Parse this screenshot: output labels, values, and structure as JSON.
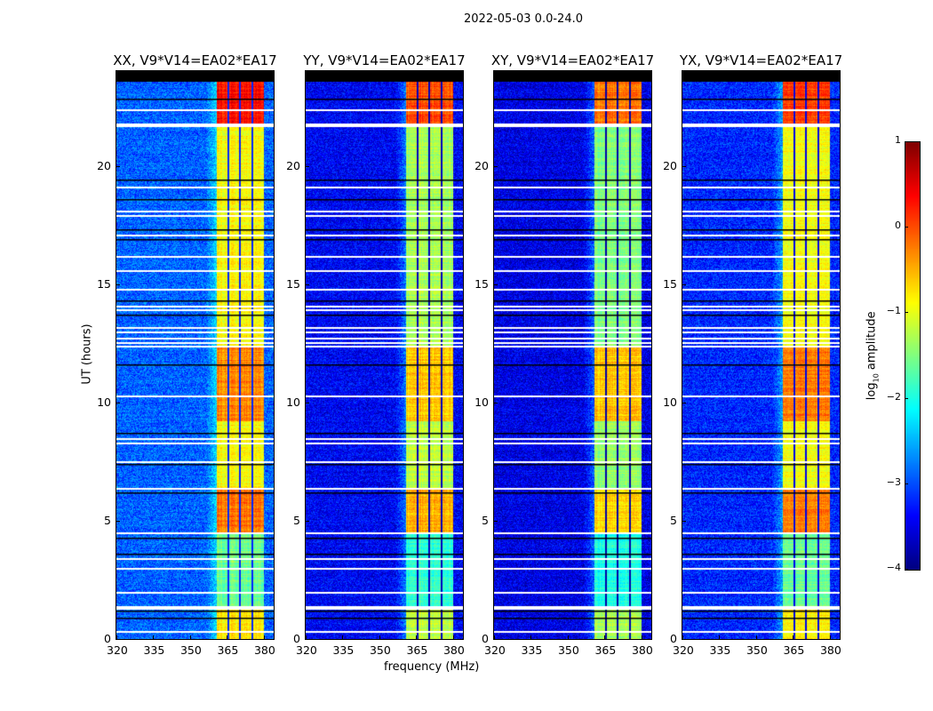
{
  "chart_data": {
    "type": "heatmap",
    "title": "2022-05-03 0.0-24.0",
    "xlabel": "frequency (MHz)",
    "ylabel": "UT (hours)",
    "xlim": [
      320,
      384
    ],
    "ylim": [
      0,
      24
    ],
    "xticks": [
      320,
      335,
      350,
      365,
      380
    ],
    "yticks": [
      0,
      5,
      10,
      15,
      20
    ],
    "colorbar": {
      "label": "log10 amplitude",
      "label_main": "log",
      "label_sub": "10",
      "label_rest": " amplitude",
      "range": [
        -4,
        1
      ],
      "ticks": [
        "1",
        "0",
        "−1",
        "−2",
        "−3",
        "−4"
      ],
      "tick_values": [
        1,
        0,
        -1,
        -2,
        -3,
        -4
      ],
      "colormap": "jet"
    },
    "rfi_band_mhz": [
      360.5,
      380
    ],
    "band_dividers_mhz": [
      365.5,
      370.2,
      375
    ],
    "no_data_ut": [
      [
        23.55,
        24
      ]
    ],
    "flagged_rows_ut": [
      22.4,
      21.8,
      21.7,
      19.1,
      18.1,
      17.9,
      17.1,
      16.2,
      15.6,
      14.8,
      14.1,
      13.95,
      13.2,
      13.0,
      12.75,
      12.55,
      12.4,
      10.3,
      8.5,
      8.3,
      7.5,
      6.4,
      4.5,
      3.4,
      3.0,
      2.0,
      1.4,
      1.3,
      0.35
    ],
    "dark_rows_ut": [
      22.85,
      19.4,
      18.6,
      17.3,
      16.9,
      14.3,
      13.7,
      11.6,
      8.7,
      7.4,
      6.2,
      4.3,
      3.6,
      1.2,
      0.9
    ],
    "panels": [
      {
        "title": "XX, V9*V14=EA02*EA17",
        "background_log10": -2.9,
        "segments": [
          {
            "ut": [
              21.8,
              23.55
            ],
            "band_log10": 0.3
          },
          {
            "ut": [
              12.4,
              21.8
            ],
            "band_log10": -0.9
          },
          {
            "ut": [
              9.2,
              12.4
            ],
            "band_log10": -0.3
          },
          {
            "ut": [
              6.3,
              9.2
            ],
            "band_log10": -0.9
          },
          {
            "ut": [
              4.5,
              6.3
            ],
            "band_log10": -0.2
          },
          {
            "ut": [
              1.3,
              4.5
            ],
            "band_log10": -1.6
          },
          {
            "ut": [
              0,
              1.3
            ],
            "band_log10": -0.8
          }
        ]
      },
      {
        "title": "YY, V9*V14=EA02*EA17",
        "background_log10": -3.4,
        "segments": [
          {
            "ut": [
              21.8,
              23.55
            ],
            "band_log10": 0.0
          },
          {
            "ut": [
              12.4,
              21.8
            ],
            "band_log10": -1.3
          },
          {
            "ut": [
              9.2,
              12.4
            ],
            "band_log10": -0.6
          },
          {
            "ut": [
              6.3,
              9.2
            ],
            "band_log10": -1.2
          },
          {
            "ut": [
              4.5,
              6.3
            ],
            "band_log10": -0.5
          },
          {
            "ut": [
              1.3,
              4.5
            ],
            "band_log10": -1.9
          },
          {
            "ut": [
              0,
              1.3
            ],
            "band_log10": -1.2
          }
        ]
      },
      {
        "title": "XY, V9*V14=EA02*EA17",
        "background_log10": -3.5,
        "segments": [
          {
            "ut": [
              21.8,
              23.55
            ],
            "band_log10": -0.2
          },
          {
            "ut": [
              12.4,
              21.8
            ],
            "band_log10": -1.5
          },
          {
            "ut": [
              9.2,
              12.4
            ],
            "band_log10": -0.6
          },
          {
            "ut": [
              6.3,
              9.2
            ],
            "band_log10": -1.4
          },
          {
            "ut": [
              4.5,
              6.3
            ],
            "band_log10": -0.7
          },
          {
            "ut": [
              1.3,
              4.5
            ],
            "band_log10": -2.0
          },
          {
            "ut": [
              0,
              1.3
            ],
            "band_log10": -1.3
          }
        ]
      },
      {
        "title": "YX, V9*V14=EA02*EA17",
        "background_log10": -3.2,
        "segments": [
          {
            "ut": [
              21.8,
              23.55
            ],
            "band_log10": 0.1
          },
          {
            "ut": [
              12.4,
              21.8
            ],
            "band_log10": -0.9
          },
          {
            "ut": [
              9.2,
              12.4
            ],
            "band_log10": -0.2
          },
          {
            "ut": [
              6.3,
              9.2
            ],
            "band_log10": -0.9
          },
          {
            "ut": [
              4.5,
              6.3
            ],
            "band_log10": -0.2
          },
          {
            "ut": [
              1.3,
              4.5
            ],
            "band_log10": -1.6
          },
          {
            "ut": [
              0,
              1.3
            ],
            "band_log10": -0.8
          }
        ]
      }
    ]
  }
}
